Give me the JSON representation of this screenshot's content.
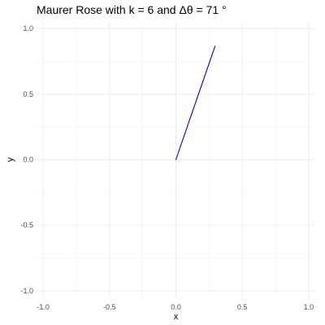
{
  "chart_data": {
    "type": "line",
    "title": "Maurer Rose with k = 6 and Δθ = 71 °",
    "xlabel": "x",
    "ylabel": "y",
    "xlim": [
      -1.05,
      1.05
    ],
    "ylim": [
      -1.05,
      1.05
    ],
    "xticks": [
      -1.0,
      -0.5,
      0.0,
      0.5,
      1.0
    ],
    "yticks": [
      -1.0,
      -0.5,
      0.0,
      0.5,
      1.0
    ],
    "xtick_labels": [
      "-1.0",
      "-0.5",
      "0.0",
      "0.5",
      "1.0"
    ],
    "ytick_labels": [
      "-1.0",
      "-0.5",
      "0.0",
      "0.5",
      "1.0"
    ],
    "grid": true,
    "series": [
      {
        "color": "#0000cc",
        "x": [
          0.0,
          0.295
        ],
        "y": [
          0.0,
          0.865
        ]
      }
    ]
  }
}
